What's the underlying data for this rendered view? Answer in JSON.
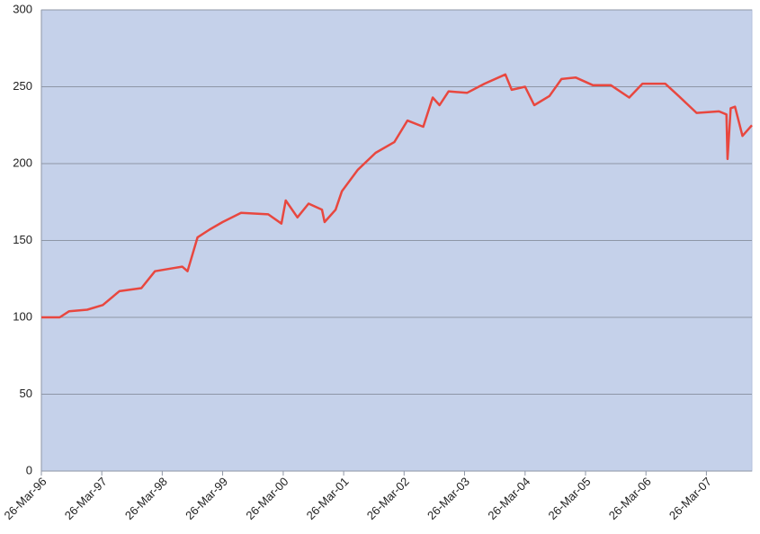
{
  "chart_data": {
    "type": "line",
    "x": [
      "1996-03-26",
      "1996-07-15",
      "1996-09-10",
      "1996-12-28",
      "1997-04-01",
      "1997-07-10",
      "1997-11-20",
      "1998-02-10",
      "1998-05-30",
      "1998-07-25",
      "1998-08-26",
      "1998-10-25",
      "1999-01-05",
      "1999-03-26",
      "1999-07-15",
      "1999-12-26",
      "2000-03-15",
      "2000-04-10",
      "2000-06-20",
      "2000-08-26",
      "2000-11-15",
      "2000-12-01",
      "2001-02-05",
      "2001-03-15",
      "2001-06-20",
      "2001-10-05",
      "2002-01-26",
      "2002-04-15",
      "2002-07-20",
      "2002-09-15",
      "2002-10-26",
      "2002-12-20",
      "2003-04-10",
      "2003-07-25",
      "2003-11-28",
      "2004-01-05",
      "2004-03-26",
      "2004-05-20",
      "2004-08-20",
      "2004-11-01",
      "2005-01-25",
      "2005-05-10",
      "2005-08-26",
      "2005-12-15",
      "2006-03-05",
      "2006-07-20",
      "2006-10-10",
      "2007-01-26",
      "2007-06-10",
      "2007-07-25",
      "2007-08-01",
      "2007-08-20",
      "2007-09-15",
      "2007-10-30",
      "2007-12-26"
    ],
    "series": [
      {
        "color": "#e8473f",
        "values": [
          100,
          100,
          104,
          105,
          108,
          117,
          119,
          130,
          132,
          133,
          130,
          152,
          157,
          162,
          168,
          167,
          161,
          176,
          165,
          174,
          170,
          162,
          170,
          182,
          196,
          207,
          214,
          228,
          224,
          243,
          238,
          247,
          246,
          252,
          258,
          248,
          250,
          238,
          244,
          255,
          256,
          251,
          251,
          243,
          252,
          252,
          244,
          233,
          234,
          232,
          203,
          236,
          237,
          218,
          225
        ]
      }
    ],
    "xlim": [
      "1996-03-26",
      "2007-12-26"
    ],
    "xticks": [
      {
        "value": "1996-03-26",
        "label": "26-Mar-96"
      },
      {
        "value": "1997-03-26",
        "label": "26-Mar-97"
      },
      {
        "value": "1998-03-26",
        "label": "26-Mar-98"
      },
      {
        "value": "1999-03-26",
        "label": "26-Mar-99"
      },
      {
        "value": "2000-03-26",
        "label": "26-Mar-00"
      },
      {
        "value": "2001-03-26",
        "label": "26-Mar-01"
      },
      {
        "value": "2002-03-26",
        "label": "26-Mar-02"
      },
      {
        "value": "2003-03-26",
        "label": "26-Mar-03"
      },
      {
        "value": "2004-03-26",
        "label": "26-Mar-04"
      },
      {
        "value": "2005-03-26",
        "label": "26-Mar-05"
      },
      {
        "value": "2006-03-26",
        "label": "26-Mar-06"
      },
      {
        "value": "2007-03-26",
        "label": "26-Mar-07"
      }
    ],
    "ylim": [
      0,
      300
    ],
    "yticks": [
      0,
      50,
      100,
      150,
      200,
      250,
      300
    ],
    "grid": true
  }
}
